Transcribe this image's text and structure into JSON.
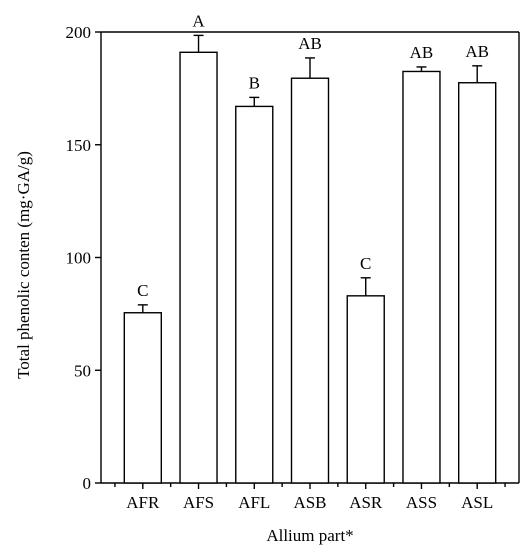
{
  "chart_data": {
    "type": "bar",
    "categories": [
      "AFR",
      "AFS",
      "AFL",
      "ASB",
      "ASR",
      "ASS",
      "ASL"
    ],
    "values": [
      75.5,
      191,
      167,
      179.5,
      83,
      182.5,
      177.5
    ],
    "error": [
      3.5,
      7.5,
      4,
      9,
      8,
      2,
      7.5
    ],
    "significance": [
      "C",
      "A",
      "B",
      "AB",
      "C",
      "AB",
      "AB"
    ],
    "ylabel": "Total phenolic conten (mg·GA/g)",
    "xlabel": "Allium part*",
    "ylim": [
      0,
      200
    ],
    "yticks": [
      0,
      50,
      100,
      150,
      200
    ],
    "ytick_labels": [
      "0",
      "50",
      "100",
      "150",
      "200"
    ],
    "grid": false,
    "bar_color": "#ffffff",
    "edge_color": "#000000"
  }
}
